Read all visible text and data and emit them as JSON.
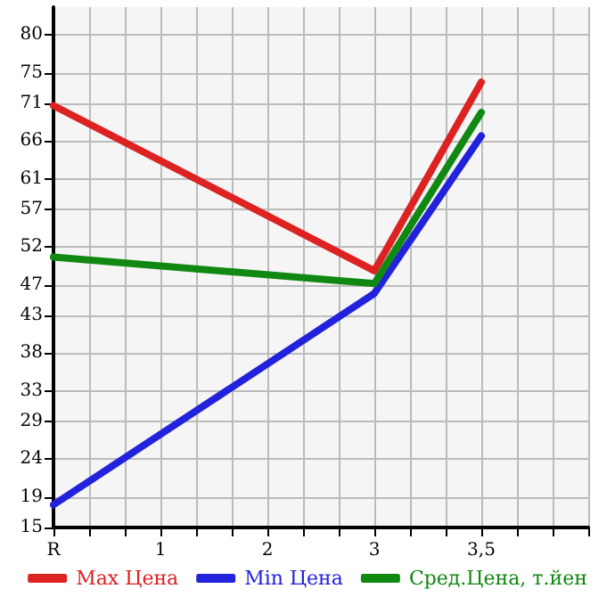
{
  "chart_data": {
    "type": "line",
    "categories": [
      "R",
      null,
      null,
      "1",
      null,
      null,
      "2",
      null,
      null,
      "3",
      null,
      null,
      "3,5",
      null,
      null,
      null
    ],
    "series": [
      {
        "name": "Max Цена",
        "color": "#dd2222",
        "values": [
          70.7,
          null,
          null,
          null,
          null,
          null,
          null,
          null,
          null,
          48.9,
          null,
          null,
          73.8,
          null,
          null,
          null
        ]
      },
      {
        "name": "Min Цена",
        "color": "#2222dd",
        "values": [
          18.0,
          null,
          null,
          null,
          null,
          null,
          null,
          null,
          null,
          45.9,
          null,
          null,
          66.7,
          null,
          null,
          null
        ]
      },
      {
        "name": "Сред.Цена, т.йен",
        "color": "#118811",
        "values": [
          50.7,
          null,
          null,
          null,
          null,
          null,
          null,
          null,
          null,
          47.2,
          null,
          null,
          69.8,
          null,
          null,
          null
        ]
      }
    ],
    "ylim": [
      15,
      83.7
    ],
    "yticks": [
      15,
      19,
      24,
      29,
      33,
      38,
      43,
      47,
      52,
      57,
      61,
      66,
      71,
      75,
      80
    ],
    "grid": true,
    "legend": "bottom",
    "marker": "none",
    "line_style": "solid"
  }
}
